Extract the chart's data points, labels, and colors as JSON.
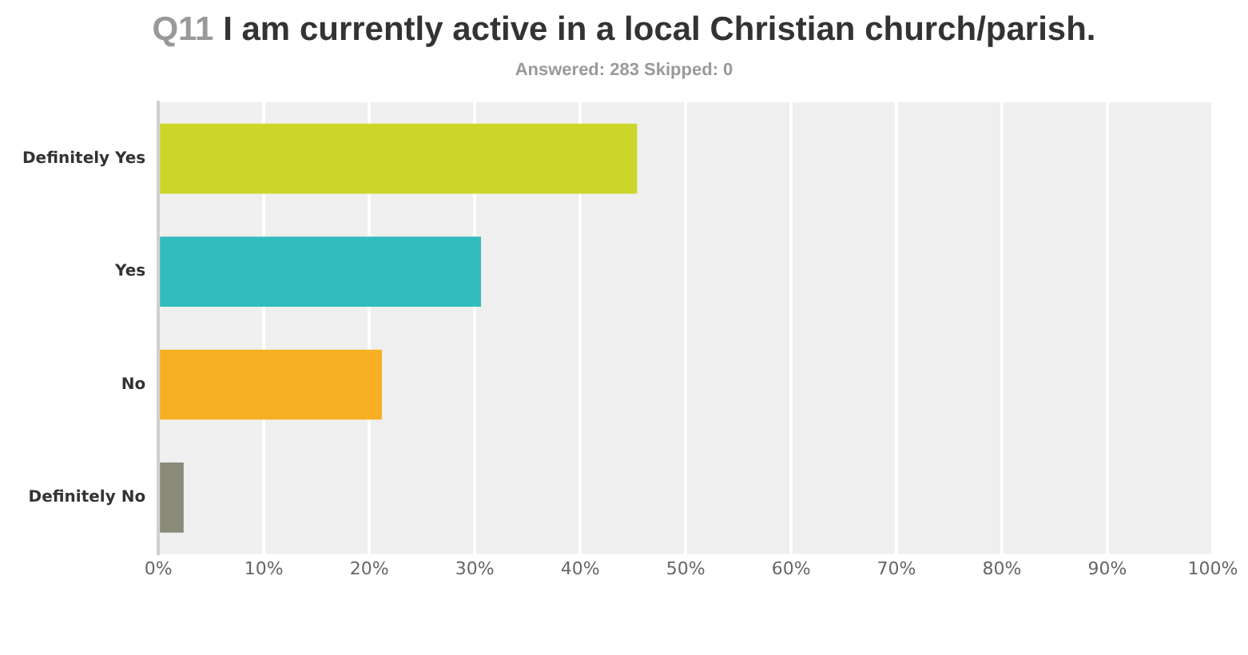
{
  "chart_data": {
    "type": "bar",
    "orientation": "horizontal",
    "title": "Q11 I am currently active in a local Christian church/parish.",
    "subtitle": "Answered: 283    Skipped: 0",
    "categories": [
      "Definitely Yes",
      "Yes",
      "No",
      "Definitely No"
    ],
    "values": [
      45.4,
      30.6,
      21.2,
      2.4
    ],
    "colors": [
      "#cdd52a",
      "#33bcbe",
      "#f6ae22",
      "#8a8a78"
    ],
    "xlim": [
      0,
      100
    ],
    "xticks": [
      {
        "value": 0,
        "label": "0%"
      },
      {
        "value": 10,
        "label": "10%"
      },
      {
        "value": 20,
        "label": "20%"
      },
      {
        "value": 30,
        "label": "30%"
      },
      {
        "value": 40,
        "label": "40%"
      },
      {
        "value": 50,
        "label": "50%"
      },
      {
        "value": 60,
        "label": "60%"
      },
      {
        "value": 70,
        "label": "70%"
      },
      {
        "value": 80,
        "label": "80%"
      },
      {
        "value": 90,
        "label": "90%"
      },
      {
        "value": 100,
        "label": "100%"
      }
    ],
    "grid": "x",
    "legend": false
  }
}
